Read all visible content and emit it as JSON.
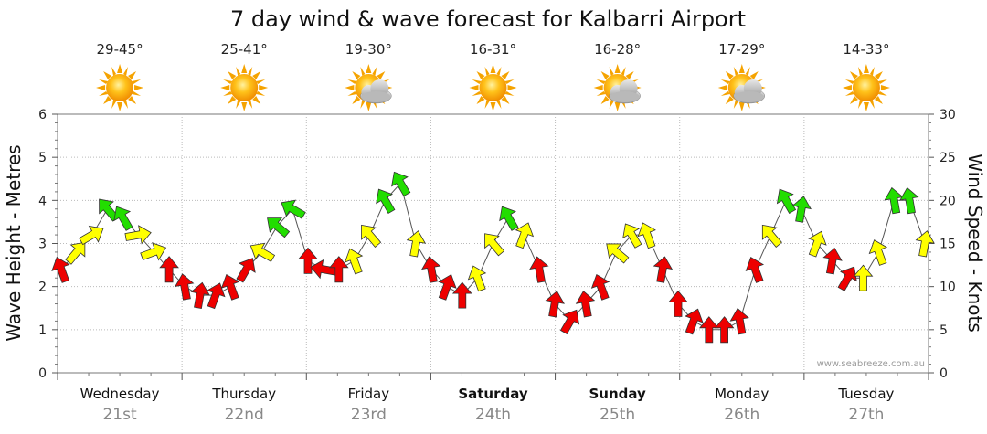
{
  "chart_data": {
    "type": "line",
    "title": "7 day wind & wave forecast for Kalbarri Airport",
    "ylabel_left": "Wave Height - Metres",
    "ylabel_right": "Wind Speed - Knots",
    "ylim_left": [
      0,
      6
    ],
    "ylim_right": [
      0,
      30
    ],
    "yticks_left": [
      "0",
      "1",
      "2",
      "3",
      "4",
      "5",
      "6"
    ],
    "yticks_right": [
      "0",
      "5",
      "10",
      "15",
      "20",
      "25",
      "30"
    ],
    "watermark": "www.seabreeze.com.au",
    "days": [
      {
        "name": "Wednesday",
        "date": "21st",
        "temp": "29-45°",
        "icon": "sun-icon",
        "bold": false
      },
      {
        "name": "Thursday",
        "date": "22nd",
        "temp": "25-41°",
        "icon": "sun-icon",
        "bold": false
      },
      {
        "name": "Friday",
        "date": "23rd",
        "temp": "19-30°",
        "icon": "sun-cloud-icon",
        "bold": false
      },
      {
        "name": "Saturday",
        "date": "24th",
        "temp": "16-31°",
        "icon": "sun-icon",
        "bold": true
      },
      {
        "name": "Sunday",
        "date": "25th",
        "temp": "16-28°",
        "icon": "sun-cloud-icon",
        "bold": true
      },
      {
        "name": "Monday",
        "date": "26th",
        "temp": "17-29°",
        "icon": "sun-cloud-icon",
        "bold": false
      },
      {
        "name": "Tuesday",
        "date": "27th",
        "temp": "14-33°",
        "icon": "sun-icon",
        "bold": false
      }
    ],
    "wind_series": {
      "name": "Wind Speed (knots)",
      "unit": "knots",
      "x_hours_from_start": [
        0,
        3,
        6,
        9,
        12,
        15,
        18,
        21,
        24,
        27,
        30,
        33,
        36,
        39,
        42,
        45,
        48,
        51,
        54,
        57,
        60,
        63,
        66,
        69,
        72,
        75,
        78,
        81,
        84,
        87,
        90,
        93,
        96,
        99,
        102,
        105,
        108,
        111,
        114,
        117,
        120,
        123,
        126,
        129,
        132,
        135,
        138,
        141,
        144,
        147,
        150,
        153,
        156,
        159,
        162,
        165,
        168
      ],
      "values": [
        12,
        14,
        16,
        19,
        18,
        16,
        14,
        12,
        10,
        9,
        9,
        10,
        12,
        14,
        17,
        19,
        13,
        12,
        12,
        13,
        16,
        20,
        22,
        15,
        12,
        10,
        9,
        11,
        15,
        18,
        16,
        12,
        8,
        6,
        8,
        10,
        14,
        16,
        16,
        12,
        8,
        6,
        5,
        5,
        6,
        12,
        16,
        20,
        19,
        15,
        13,
        11,
        11,
        14,
        20,
        20,
        15
      ],
      "colors": [
        "red",
        "yellow",
        "yellow",
        "green",
        "green",
        "yellow",
        "yellow",
        "red",
        "red",
        "red",
        "red",
        "red",
        "red",
        "yellow",
        "green",
        "green",
        "red",
        "red",
        "red",
        "yellow",
        "yellow",
        "green",
        "green",
        "yellow",
        "red",
        "red",
        "red",
        "yellow",
        "yellow",
        "green",
        "yellow",
        "red",
        "red",
        "red",
        "red",
        "red",
        "yellow",
        "yellow",
        "yellow",
        "red",
        "red",
        "red",
        "red",
        "red",
        "red",
        "red",
        "yellow",
        "green",
        "green",
        "yellow",
        "red",
        "red",
        "yellow",
        "yellow",
        "green",
        "green",
        "yellow"
      ]
    },
    "color_scale": {
      "green": "#22dd00",
      "yellow": "#ffff00",
      "red": "#ee0000",
      "outline": "#333333"
    }
  }
}
